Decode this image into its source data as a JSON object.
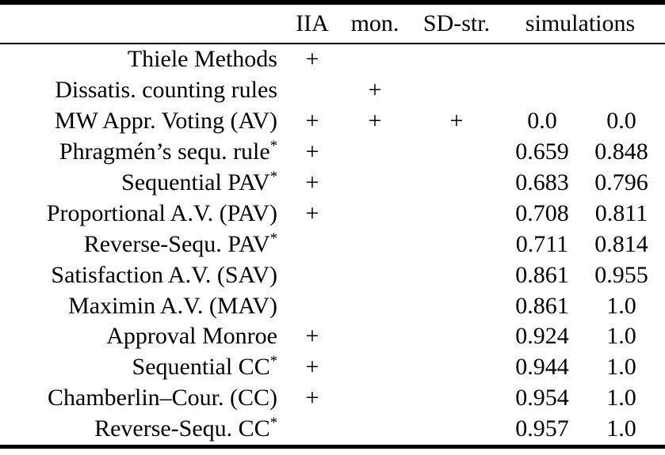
{
  "table": {
    "headers": {
      "rule_column": "",
      "iia": "IIA",
      "mon": "mon.",
      "sdstr": "SD-str.",
      "simulations": "simulations"
    },
    "rows": [
      {
        "label": "Thiele Methods",
        "sup": "",
        "iia": "+",
        "mon": "",
        "sdstr": "",
        "sim1": "",
        "sim2": ""
      },
      {
        "label": "Dissatis. counting rules",
        "sup": "",
        "iia": "",
        "mon": "+",
        "sdstr": "",
        "sim1": "",
        "sim2": ""
      },
      {
        "label": "MW Appr. Voting (AV)",
        "sup": "",
        "iia": "+",
        "mon": "+",
        "sdstr": "+",
        "sim1": "0.0",
        "sim2": "0.0"
      },
      {
        "label": "Phragmén’s sequ. rule",
        "sup": "*",
        "iia": "+",
        "mon": "",
        "sdstr": "",
        "sim1": "0.659",
        "sim2": "0.848"
      },
      {
        "label": "Sequential PAV",
        "sup": "*",
        "iia": "+",
        "mon": "",
        "sdstr": "",
        "sim1": "0.683",
        "sim2": "0.796"
      },
      {
        "label": "Proportional A.V. (PAV)",
        "sup": "",
        "iia": "+",
        "mon": "",
        "sdstr": "",
        "sim1": "0.708",
        "sim2": "0.811"
      },
      {
        "label": "Reverse-Sequ. PAV",
        "sup": "*",
        "iia": "",
        "mon": "",
        "sdstr": "",
        "sim1": "0.711",
        "sim2": "0.814"
      },
      {
        "label": "Satisfaction A.V. (SAV)",
        "sup": "",
        "iia": "",
        "mon": "",
        "sdstr": "",
        "sim1": "0.861",
        "sim2": "0.955"
      },
      {
        "label": "Maximin A.V. (MAV)",
        "sup": "",
        "iia": "",
        "mon": "",
        "sdstr": "",
        "sim1": "0.861",
        "sim2": "1.0"
      },
      {
        "label": "Approval Monroe",
        "sup": "",
        "iia": "+",
        "mon": "",
        "sdstr": "",
        "sim1": "0.924",
        "sim2": "1.0"
      },
      {
        "label": "Sequential CC",
        "sup": "*",
        "iia": "+",
        "mon": "",
        "sdstr": "",
        "sim1": "0.944",
        "sim2": "1.0"
      },
      {
        "label": "Chamberlin–Cour. (CC)",
        "sup": "",
        "iia": "+",
        "mon": "",
        "sdstr": "",
        "sim1": "0.954",
        "sim2": "1.0"
      },
      {
        "label": "Reverse-Sequ. CC",
        "sup": "*",
        "iia": "",
        "mon": "",
        "sdstr": "",
        "sim1": "0.957",
        "sim2": "1.0"
      }
    ]
  }
}
